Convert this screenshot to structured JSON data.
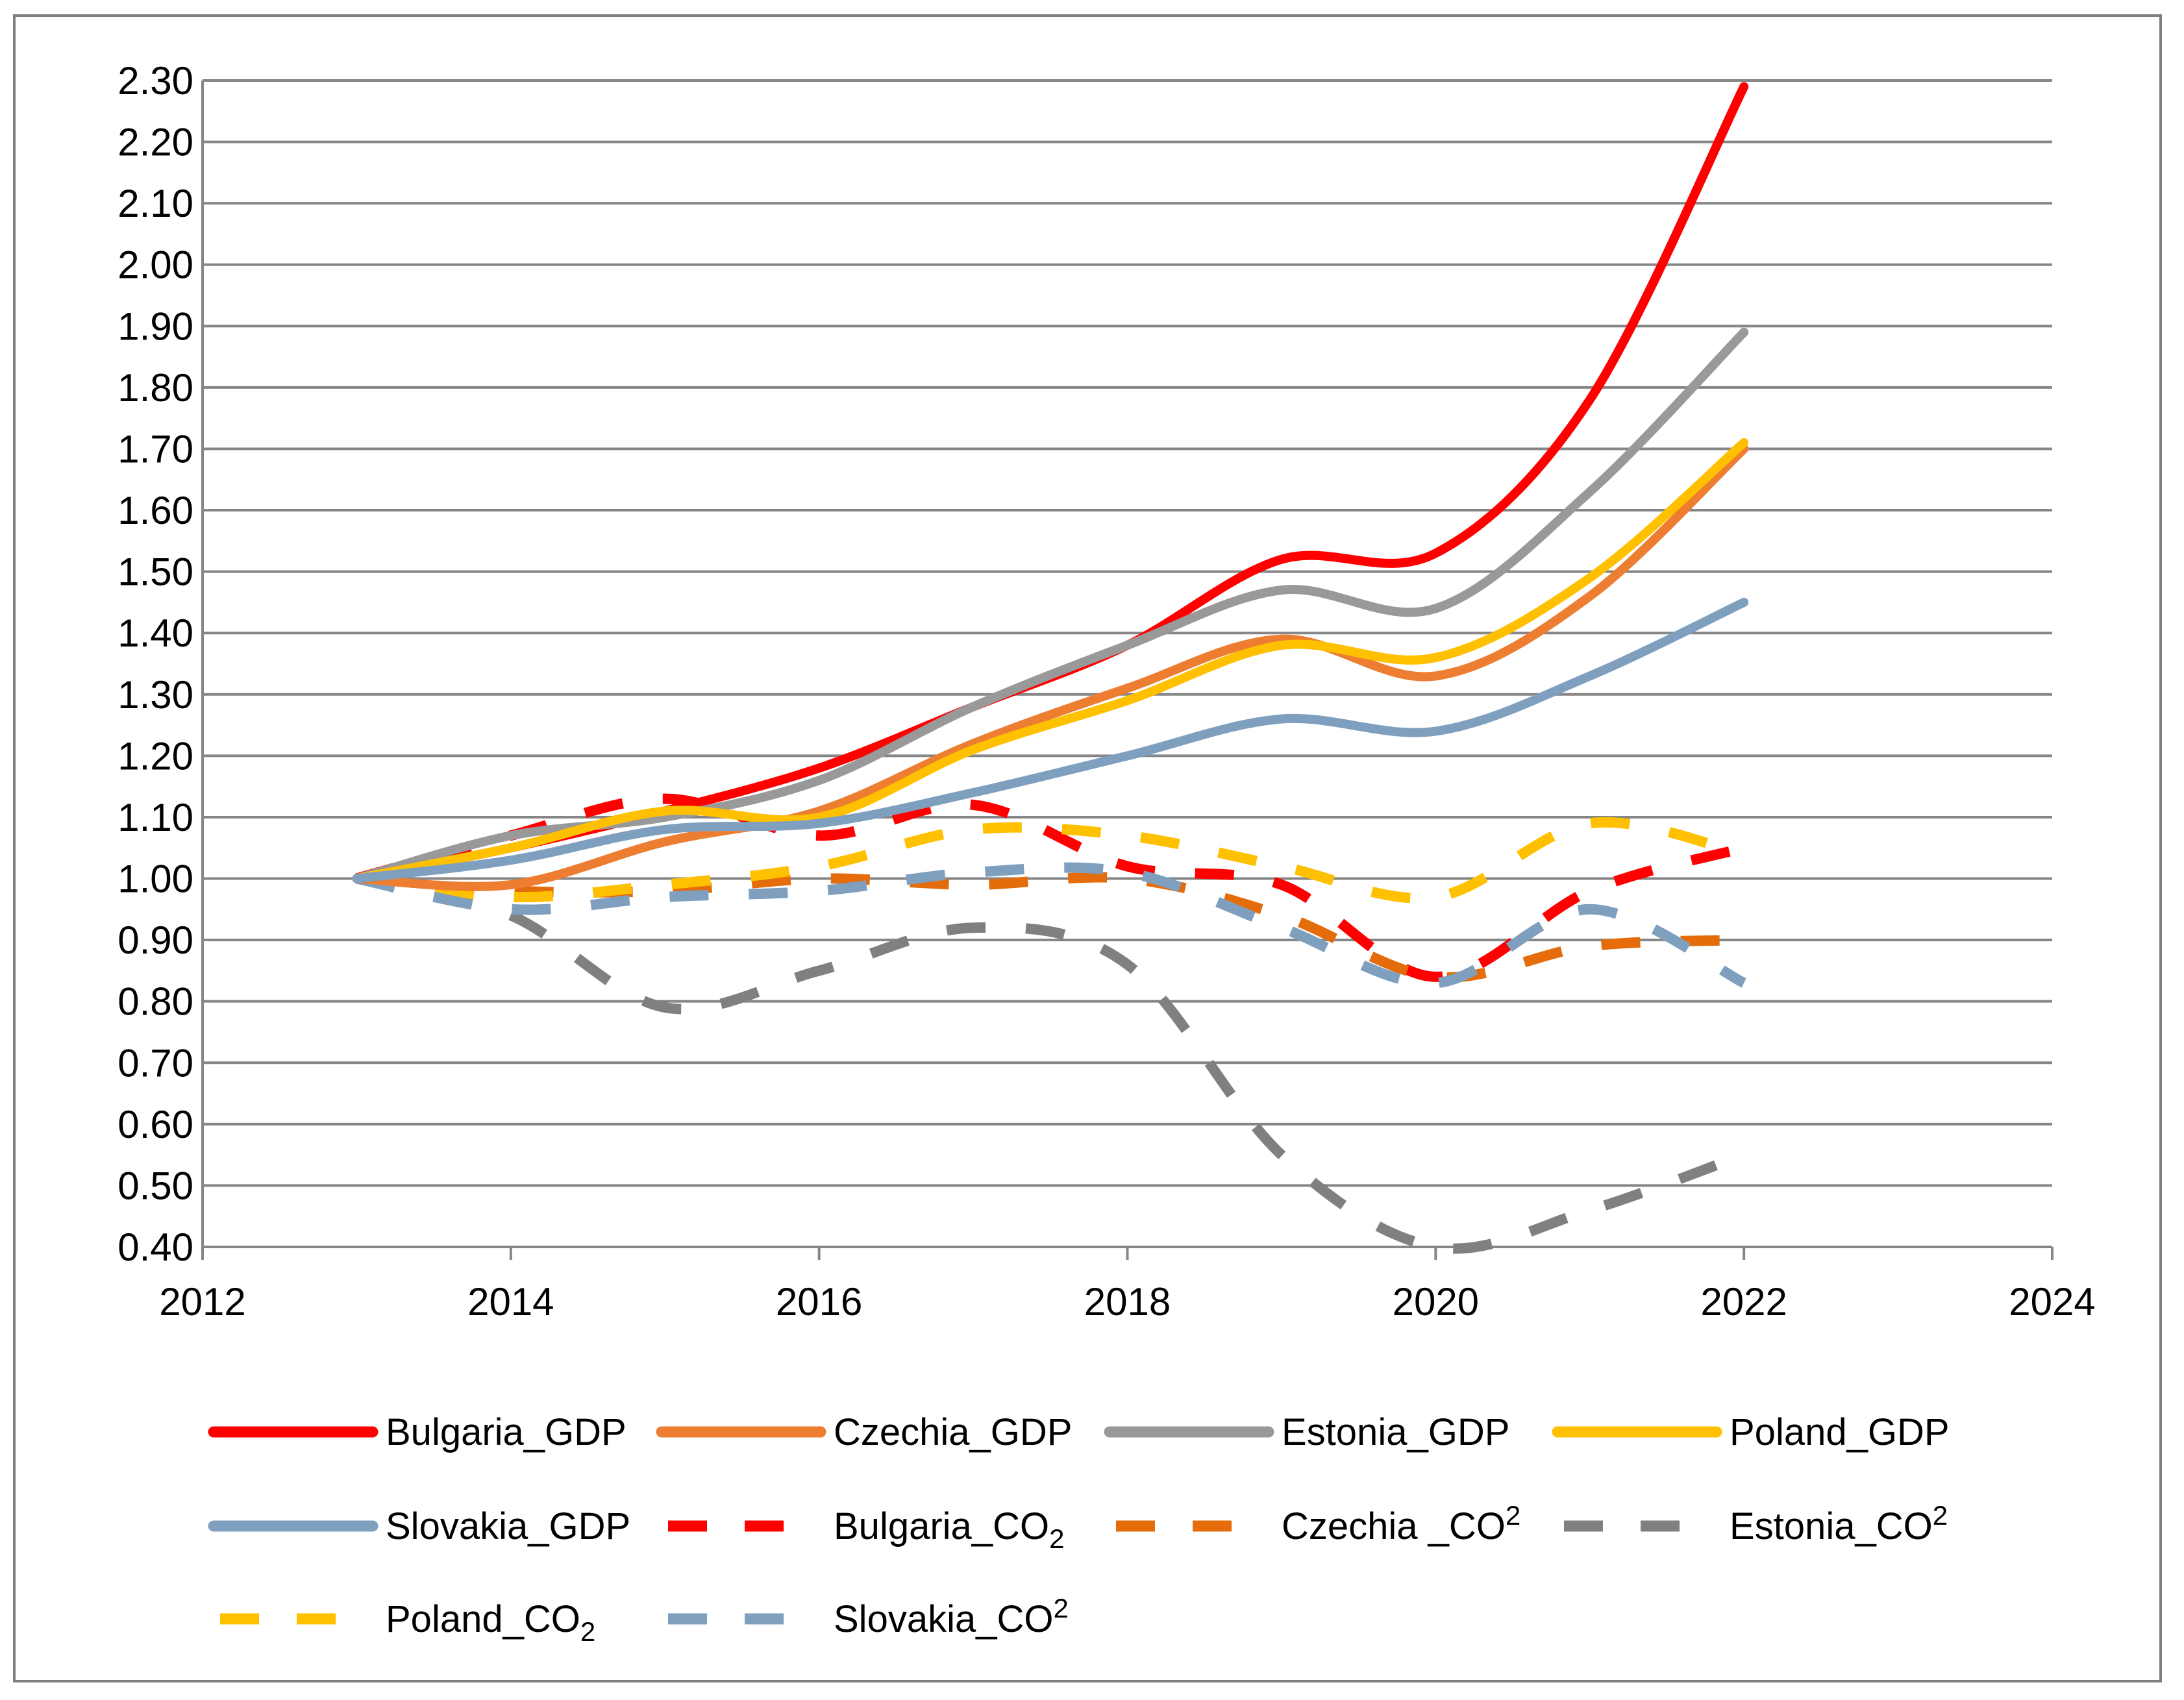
{
  "chart_data": {
    "type": "line",
    "title": "",
    "xlabel": "",
    "ylabel": "",
    "xlim": [
      2012,
      2024
    ],
    "ylim": [
      0.4,
      2.3
    ],
    "x_ticks": [
      "2012",
      "2014",
      "2016",
      "2018",
      "2020",
      "2022",
      "2024"
    ],
    "y_ticks": [
      "0.40",
      "0.50",
      "0.60",
      "0.70",
      "0.80",
      "0.90",
      "1.00",
      "1.10",
      "1.20",
      "1.30",
      "1.40",
      "1.50",
      "1.60",
      "1.70",
      "1.80",
      "1.90",
      "2.00",
      "2.10",
      "2.20",
      "2.30"
    ],
    "grid": true,
    "legend_position": "bottom",
    "x": [
      2013,
      2014,
      2015,
      2016,
      2017,
      2018,
      2019,
      2020,
      2021,
      2022
    ],
    "series": [
      {
        "name": "Bulgaria_GDP",
        "base": "Bulgaria_GDP",
        "sub": "",
        "sub_style": "",
        "color": "#ff0000",
        "dash": false,
        "values": [
          1.0,
          1.05,
          1.11,
          1.18,
          1.28,
          1.38,
          1.52,
          1.53,
          1.78,
          2.29
        ]
      },
      {
        "name": "Czechia_GDP",
        "base": "Czechia_GDP",
        "sub": "",
        "sub_style": "",
        "color": "#ed7d31",
        "dash": false,
        "values": [
          1.0,
          0.99,
          1.06,
          1.11,
          1.22,
          1.31,
          1.39,
          1.33,
          1.46,
          1.7
        ]
      },
      {
        "name": "Estonia_GDP",
        "base": "Estonia_GDP",
        "sub": "",
        "sub_style": "",
        "color": "#999999",
        "dash": false,
        "values": [
          1.0,
          1.07,
          1.1,
          1.16,
          1.28,
          1.38,
          1.47,
          1.44,
          1.63,
          1.89
        ]
      },
      {
        "name": "Poland_GDP",
        "base": "Poland_GDP",
        "sub": "",
        "sub_style": "",
        "color": "#ffc000",
        "dash": false,
        "values": [
          1.0,
          1.05,
          1.11,
          1.1,
          1.21,
          1.29,
          1.38,
          1.36,
          1.49,
          1.71
        ]
      },
      {
        "name": "Slovakia_GDP",
        "base": "Slovakia_GDP",
        "sub": "",
        "sub_style": "",
        "color": "#7f9fbf",
        "dash": false,
        "values": [
          1.0,
          1.03,
          1.08,
          1.09,
          1.14,
          1.2,
          1.26,
          1.24,
          1.33,
          1.45
        ]
      },
      {
        "name": "Bulgaria_CO2",
        "base": "Bulgaria_CO",
        "sub": "2",
        "sub_style": "low",
        "color": "#ff0000",
        "dash": true,
        "values": [
          1.0,
          1.07,
          1.13,
          1.07,
          1.12,
          1.02,
          0.99,
          0.84,
          0.98,
          1.05
        ]
      },
      {
        "name": "Czechia_CO2",
        "base": "Czechia _CO",
        "sub": "2",
        "sub_style": "high",
        "color": "#e46c0a",
        "dash": true,
        "values": [
          1.0,
          0.98,
          0.98,
          1.0,
          0.99,
          1.0,
          0.94,
          0.84,
          0.89,
          0.9
        ]
      },
      {
        "name": "Estonia_CO2",
        "base": "Estonia_CO",
        "sub": "2",
        "sub_style": "high",
        "color": "#808080",
        "dash": true,
        "values": [
          1.0,
          0.94,
          0.79,
          0.85,
          0.92,
          0.86,
          0.55,
          0.4,
          0.46,
          0.55
        ]
      },
      {
        "name": "Poland_CO2",
        "base": "Poland_CO",
        "sub": "2",
        "sub_style": "low",
        "color": "#ffc000",
        "dash": true,
        "values": [
          1.0,
          0.97,
          0.99,
          1.02,
          1.08,
          1.07,
          1.02,
          0.97,
          1.09,
          1.04
        ]
      },
      {
        "name": "Slovakia_CO2",
        "base": "Slovakia_CO",
        "sub": "2",
        "sub_style": "high",
        "color": "#7f9fbf",
        "dash": true,
        "values": [
          1.0,
          0.95,
          0.97,
          0.98,
          1.01,
          1.01,
          0.92,
          0.83,
          0.95,
          0.83
        ]
      }
    ]
  }
}
